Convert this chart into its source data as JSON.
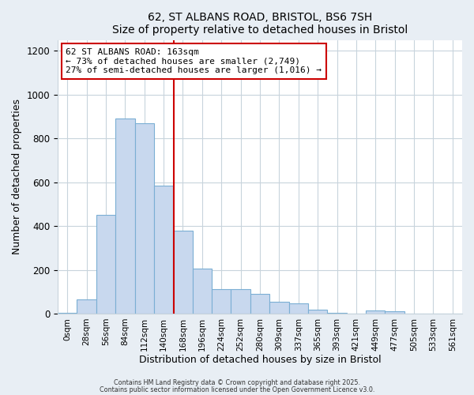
{
  "title": "62, ST ALBANS ROAD, BRISTOL, BS6 7SH",
  "subtitle": "Size of property relative to detached houses in Bristol",
  "xlabel": "Distribution of detached houses by size in Bristol",
  "ylabel": "Number of detached properties",
  "bar_labels": [
    "0sqm",
    "28sqm",
    "56sqm",
    "84sqm",
    "112sqm",
    "140sqm",
    "168sqm",
    "196sqm",
    "224sqm",
    "252sqm",
    "280sqm",
    "309sqm",
    "337sqm",
    "365sqm",
    "393sqm",
    "421sqm",
    "449sqm",
    "477sqm",
    "505sqm",
    "533sqm",
    "561sqm"
  ],
  "bar_values": [
    5,
    65,
    450,
    890,
    870,
    585,
    380,
    205,
    110,
    110,
    90,
    55,
    48,
    18,
    5,
    0,
    13,
    10,
    0,
    0,
    0
  ],
  "bar_color": "#c8d8ee",
  "bar_edgecolor": "#7bafd4",
  "vline_x": 5.535,
  "vline_color": "#cc0000",
  "annotation_line1": "62 ST ALBANS ROAD: 163sqm",
  "annotation_line2": "← 73% of detached houses are smaller (2,749)",
  "annotation_line3": "27% of semi-detached houses are larger (1,016) →",
  "annotation_box_facecolor": "#ffffff",
  "annotation_box_edgecolor": "#cc0000",
  "ylim": [
    0,
    1250
  ],
  "yticks": [
    0,
    200,
    400,
    600,
    800,
    1000,
    1200
  ],
  "bg_color": "#e8eef4",
  "plot_bg_color": "#ffffff",
  "grid_color": "#c8d4dc",
  "footer1": "Contains HM Land Registry data © Crown copyright and database right 2025.",
  "footer2": "Contains public sector information licensed under the Open Government Licence v3.0."
}
